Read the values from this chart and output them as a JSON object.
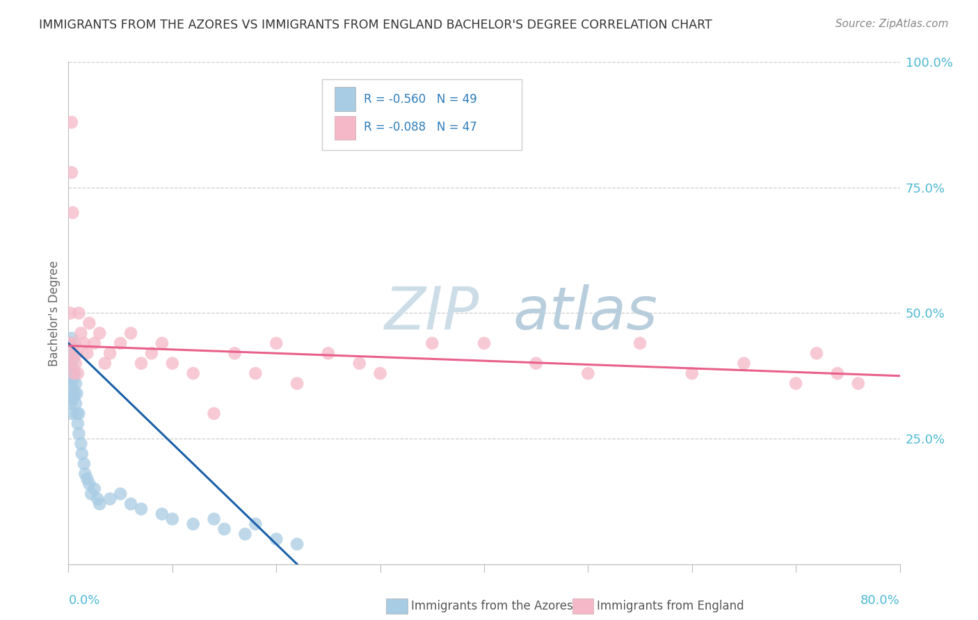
{
  "title": "IMMIGRANTS FROM THE AZORES VS IMMIGRANTS FROM ENGLAND BACHELOR'S DEGREE CORRELATION CHART",
  "source": "Source: ZipAtlas.com",
  "ylabel": "Bachelor's Degree",
  "legend_entry1": "R = -0.560   N = 49",
  "legend_entry2": "R = -0.088   N = 47",
  "legend_label1": "Immigrants from the Azores",
  "legend_label2": "Immigrants from England",
  "color_azores": "#a8cce4",
  "color_england": "#f5b8c8",
  "color_azores_line": "#1a5fa8",
  "color_england_line": "#e8608a",
  "watermark_zip_color": "#cde3f0",
  "watermark_atlas_color": "#b8d4e8",
  "xmin": 0.0,
  "xmax": 0.8,
  "ymin": 0.0,
  "ymax": 1.0,
  "yticks": [
    0.0,
    0.25,
    0.5,
    0.75,
    1.0
  ],
  "ytick_labels": [
    "",
    "25.0%",
    "50.0%",
    "75.0%",
    "100.0%"
  ],
  "azores_x": [
    0.001,
    0.001,
    0.002,
    0.002,
    0.002,
    0.002,
    0.003,
    0.003,
    0.003,
    0.003,
    0.003,
    0.004,
    0.004,
    0.004,
    0.005,
    0.005,
    0.005,
    0.006,
    0.006,
    0.007,
    0.007,
    0.008,
    0.008,
    0.009,
    0.01,
    0.01,
    0.012,
    0.013,
    0.015,
    0.016,
    0.018,
    0.02,
    0.022,
    0.025,
    0.028,
    0.03,
    0.04,
    0.05,
    0.06,
    0.07,
    0.09,
    0.1,
    0.12,
    0.14,
    0.15,
    0.17,
    0.18,
    0.2,
    0.22
  ],
  "azores_y": [
    0.42,
    0.38,
    0.44,
    0.4,
    0.36,
    0.32,
    0.45,
    0.41,
    0.37,
    0.33,
    0.3,
    0.43,
    0.39,
    0.35,
    0.41,
    0.37,
    0.33,
    0.38,
    0.34,
    0.36,
    0.32,
    0.34,
    0.3,
    0.28,
    0.3,
    0.26,
    0.24,
    0.22,
    0.2,
    0.18,
    0.17,
    0.16,
    0.14,
    0.15,
    0.13,
    0.12,
    0.13,
    0.14,
    0.12,
    0.11,
    0.1,
    0.09,
    0.08,
    0.09,
    0.07,
    0.06,
    0.08,
    0.05,
    0.04
  ],
  "england_x": [
    0.001,
    0.002,
    0.002,
    0.003,
    0.003,
    0.004,
    0.004,
    0.005,
    0.006,
    0.007,
    0.008,
    0.009,
    0.01,
    0.012,
    0.015,
    0.018,
    0.02,
    0.025,
    0.03,
    0.035,
    0.04,
    0.05,
    0.06,
    0.07,
    0.08,
    0.09,
    0.1,
    0.12,
    0.14,
    0.16,
    0.18,
    0.2,
    0.22,
    0.25,
    0.28,
    0.3,
    0.35,
    0.4,
    0.45,
    0.5,
    0.55,
    0.6,
    0.65,
    0.7,
    0.72,
    0.74,
    0.76
  ],
  "england_y": [
    0.44,
    0.5,
    0.4,
    0.88,
    0.78,
    0.7,
    0.42,
    0.38,
    0.44,
    0.4,
    0.42,
    0.38,
    0.5,
    0.46,
    0.44,
    0.42,
    0.48,
    0.44,
    0.46,
    0.4,
    0.42,
    0.44,
    0.46,
    0.4,
    0.42,
    0.44,
    0.4,
    0.38,
    0.3,
    0.42,
    0.38,
    0.44,
    0.36,
    0.42,
    0.4,
    0.38,
    0.44,
    0.44,
    0.4,
    0.38,
    0.44,
    0.38,
    0.4,
    0.36,
    0.42,
    0.38,
    0.36
  ],
  "az_trend_x0": 0.0,
  "az_trend_y0": 0.44,
  "az_trend_x1": 0.22,
  "az_trend_y1": 0.0,
  "eng_trend_x0": 0.0,
  "eng_trend_y0": 0.435,
  "eng_trend_x1": 0.8,
  "eng_trend_y1": 0.375
}
